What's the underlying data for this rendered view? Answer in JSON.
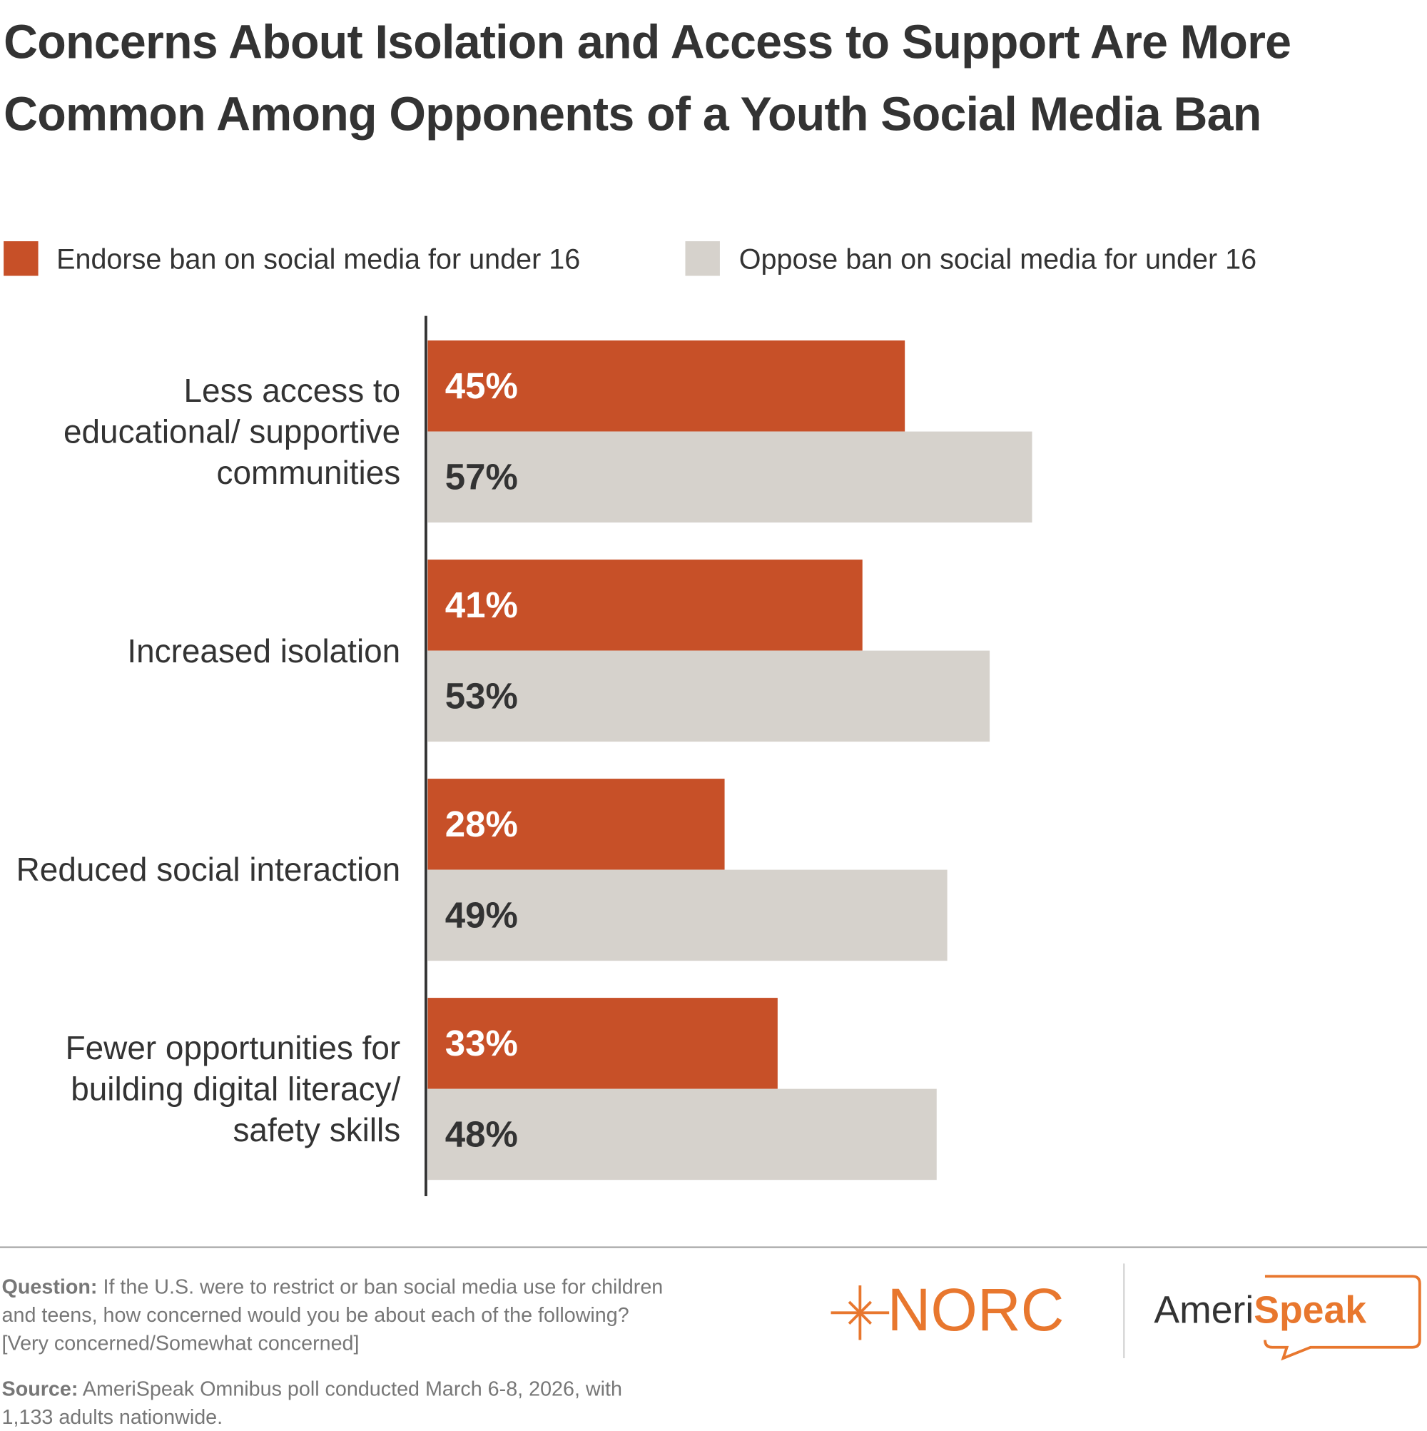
{
  "chart_data": {
    "type": "hbar",
    "title": "Concerns About Isolation and Access to Support Are More Common Among Opponents of a Youth Social Media Ban",
    "categories": [
      "Less access to educational/ supportive communities",
      "Increased isolation",
      "Reduced social interaction",
      "Fewer opportunities for building digital literacy/ safety skills"
    ],
    "series": [
      {
        "name": "Endorse ban on social media for under 16",
        "color": "#c75028",
        "values": [
          45,
          41,
          28,
          33
        ],
        "value_labels": [
          "45%",
          "41%",
          "28%",
          "33%"
        ]
      },
      {
        "name": "Oppose ban on social media for under 16",
        "color": "#d6d2cc",
        "values": [
          57,
          53,
          49,
          48
        ],
        "value_labels": [
          "57%",
          "53%",
          "49%",
          "48%"
        ]
      }
    ],
    "xlim": [
      0,
      60
    ]
  },
  "footer": {
    "question_label": "Question:",
    "question": "If the U.S. were to restrict or ban social media use for children and teens, how concerned would you be about each of the following? [Very concerned/Somewhat concerned]",
    "source_label": "Source:",
    "source": "AmeriSpeak Omnibus poll conducted March 6-8, 2026, with 1,133 adults nationwide.",
    "logo_norc": "NORC",
    "logo_ameri": "Ameri",
    "logo_speak": "Speak"
  }
}
